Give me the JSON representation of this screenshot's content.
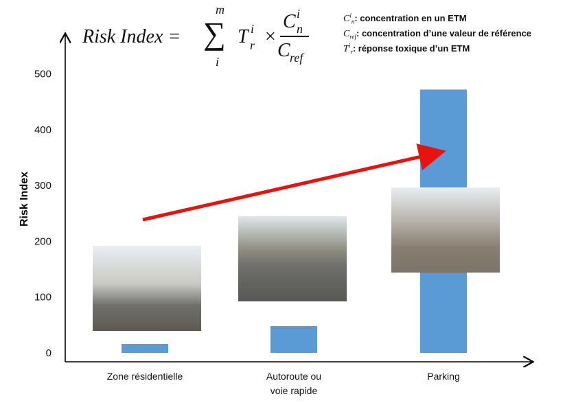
{
  "chart_data": {
    "type": "bar",
    "formula": {
      "left": "Risk Index =",
      "sum_top": "m",
      "sum_sign": "∑",
      "sum_bottom": "i",
      "term": "T",
      "term_sup": "i",
      "term_sub": "r",
      "times": "×",
      "num": "C",
      "num_sup": "i",
      "num_sub": "n",
      "den": "C",
      "den_sub": "ref"
    },
    "notes": [
      {
        "symbol": "C",
        "sup": "i",
        "sub": "n",
        "text": ": concentration en un ETM"
      },
      {
        "symbol": "C",
        "sup": "",
        "sub": "ref",
        "text": ": concentration d’une valeur de référence"
      },
      {
        "symbol": "T",
        "sup": "i",
        "sub": "r",
        "text": ": réponse toxique d’un ETM"
      }
    ],
    "y_label": "Risk Index",
    "categories": [
      "Zone résidentielle",
      "Autoroute ou\nvoie rapide",
      "Parking"
    ],
    "values": [
      16,
      48,
      472
    ],
    "color": "#5b9bd5",
    "ylim": [
      -16,
      571
    ],
    "yticks": [
      0,
      100,
      200,
      300,
      400,
      500
    ],
    "grid": false
  }
}
